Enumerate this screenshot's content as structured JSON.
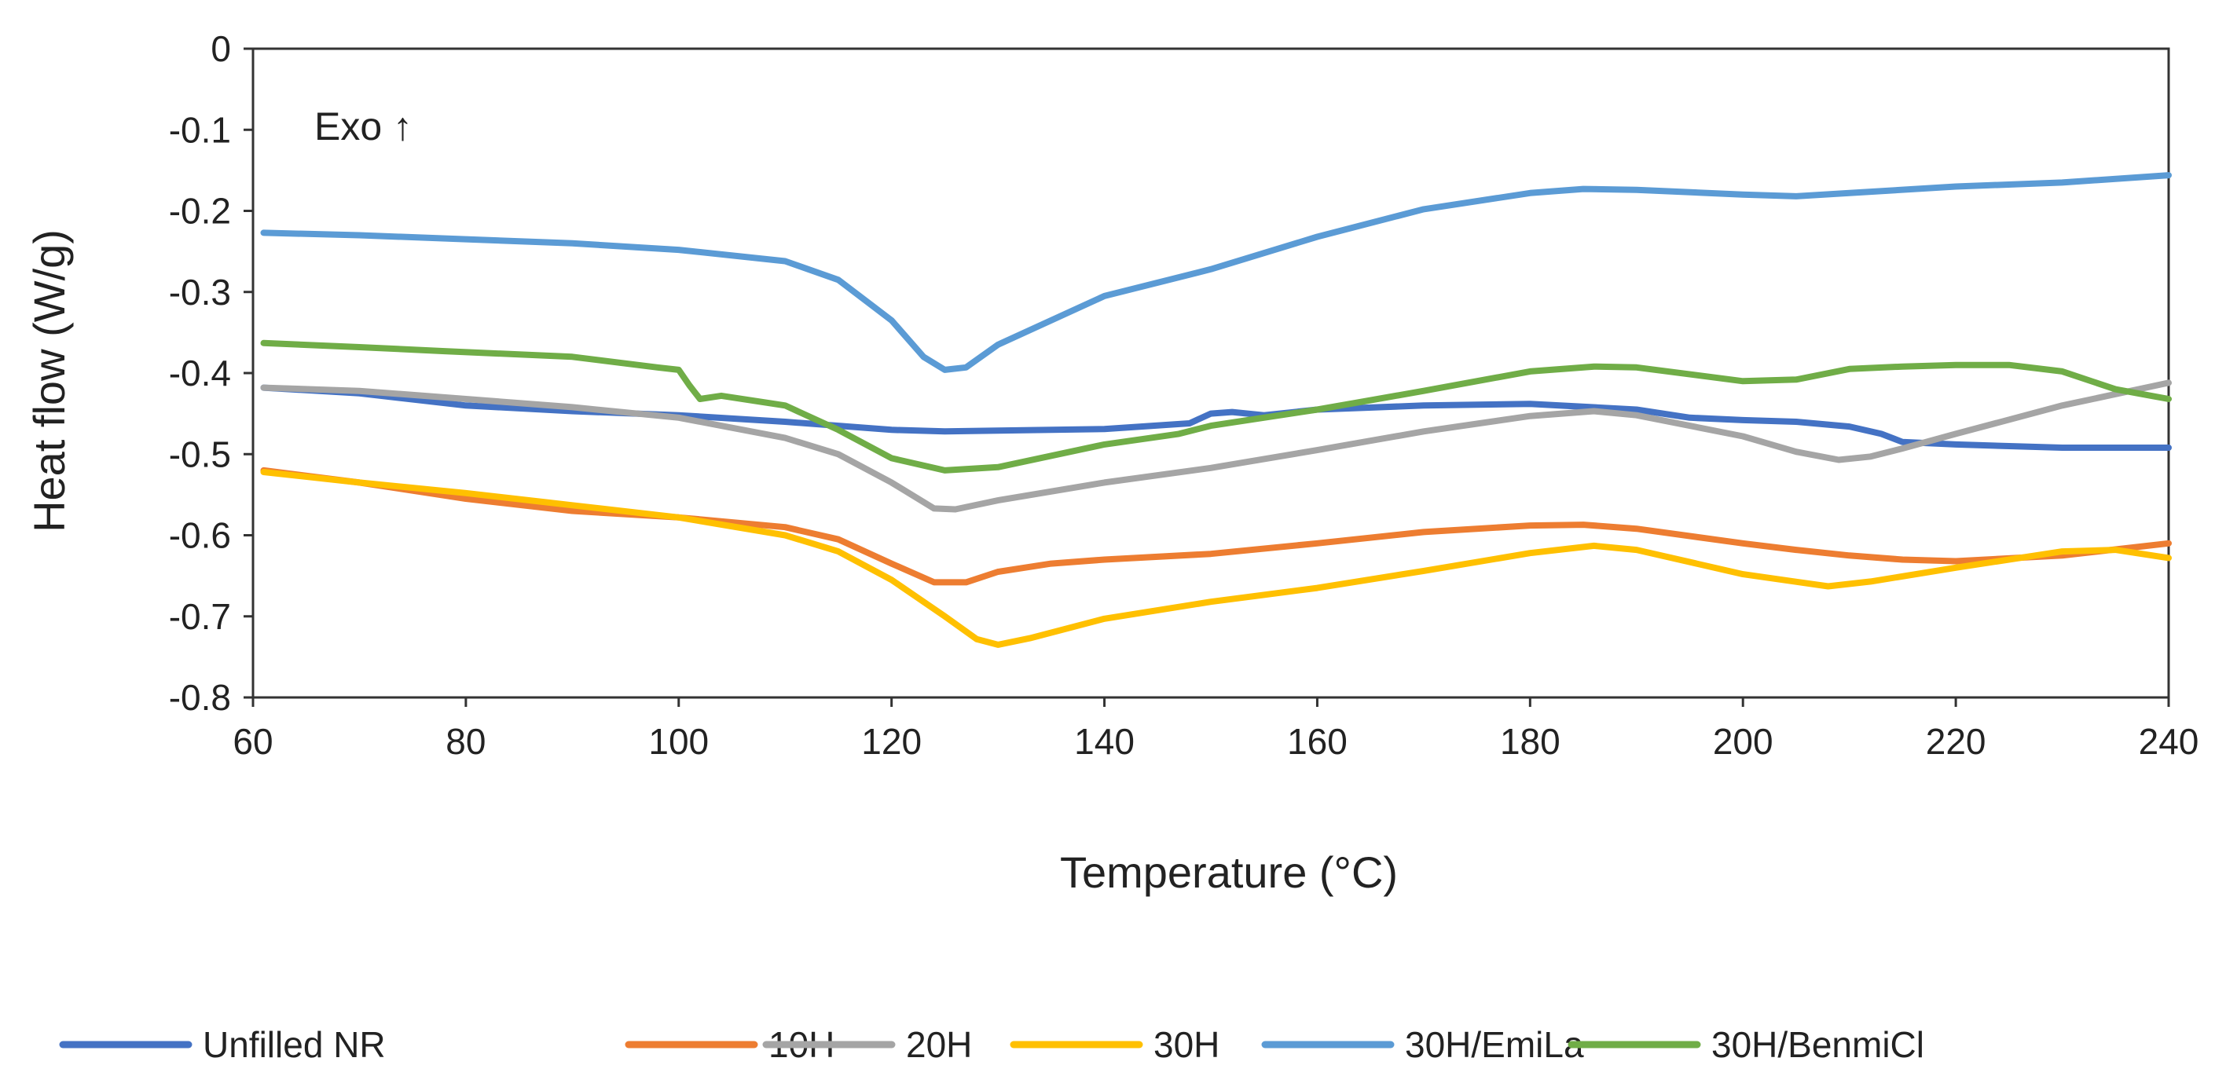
{
  "chart_data": {
    "type": "line",
    "xlabel": "Temperature (°C)",
    "ylabel": "Heat flow (W/g)",
    "xlim": [
      60,
      240
    ],
    "ylim": [
      -0.8,
      0
    ],
    "xticks": [
      60,
      80,
      100,
      120,
      140,
      160,
      180,
      200,
      220,
      240
    ],
    "yticks": [
      0,
      -0.1,
      -0.2,
      -0.3,
      -0.4,
      -0.5,
      -0.6,
      -0.7,
      -0.8
    ],
    "ytick_labels": [
      "0",
      "-0.1",
      "-0.2",
      "-0.3",
      "-0.4",
      "-0.5",
      "-0.6",
      "-0.7",
      "-0.8"
    ],
    "grid": false,
    "legend_position": "bottom",
    "annotation": "Exo ↑",
    "series": [
      {
        "name": "Unfilled NR",
        "color": "#4472C4",
        "points": [
          [
            61,
            -0.418
          ],
          [
            70,
            -0.425
          ],
          [
            80,
            -0.44
          ],
          [
            90,
            -0.447
          ],
          [
            100,
            -0.452
          ],
          [
            110,
            -0.46
          ],
          [
            120,
            -0.47
          ],
          [
            125,
            -0.472
          ],
          [
            130,
            -0.471
          ],
          [
            140,
            -0.469
          ],
          [
            148,
            -0.462
          ],
          [
            150,
            -0.45
          ],
          [
            152,
            -0.448
          ],
          [
            155,
            -0.452
          ],
          [
            160,
            -0.445
          ],
          [
            170,
            -0.44
          ],
          [
            180,
            -0.438
          ],
          [
            190,
            -0.445
          ],
          [
            195,
            -0.455
          ],
          [
            200,
            -0.458
          ],
          [
            205,
            -0.46
          ],
          [
            210,
            -0.466
          ],
          [
            213,
            -0.475
          ],
          [
            215,
            -0.485
          ],
          [
            220,
            -0.488
          ],
          [
            230,
            -0.492
          ],
          [
            240,
            -0.492
          ]
        ]
      },
      {
        "name": "10H",
        "color": "#ED7D31",
        "points": [
          [
            61,
            -0.52
          ],
          [
            70,
            -0.535
          ],
          [
            80,
            -0.555
          ],
          [
            90,
            -0.57
          ],
          [
            100,
            -0.578
          ],
          [
            110,
            -0.59
          ],
          [
            115,
            -0.605
          ],
          [
            120,
            -0.635
          ],
          [
            124,
            -0.658
          ],
          [
            127,
            -0.658
          ],
          [
            130,
            -0.645
          ],
          [
            135,
            -0.635
          ],
          [
            140,
            -0.63
          ],
          [
            150,
            -0.623
          ],
          [
            160,
            -0.61
          ],
          [
            170,
            -0.596
          ],
          [
            180,
            -0.588
          ],
          [
            185,
            -0.587
          ],
          [
            190,
            -0.592
          ],
          [
            200,
            -0.61
          ],
          [
            205,
            -0.618
          ],
          [
            210,
            -0.625
          ],
          [
            215,
            -0.63
          ],
          [
            220,
            -0.632
          ],
          [
            230,
            -0.625
          ],
          [
            240,
            -0.61
          ]
        ]
      },
      {
        "name": "20H",
        "color": "#A5A5A5",
        "points": [
          [
            61,
            -0.418
          ],
          [
            70,
            -0.422
          ],
          [
            80,
            -0.432
          ],
          [
            90,
            -0.442
          ],
          [
            100,
            -0.455
          ],
          [
            110,
            -0.48
          ],
          [
            115,
            -0.5
          ],
          [
            120,
            -0.535
          ],
          [
            124,
            -0.567
          ],
          [
            126,
            -0.568
          ],
          [
            130,
            -0.557
          ],
          [
            140,
            -0.535
          ],
          [
            150,
            -0.517
          ],
          [
            160,
            -0.495
          ],
          [
            170,
            -0.472
          ],
          [
            180,
            -0.453
          ],
          [
            186,
            -0.447
          ],
          [
            190,
            -0.452
          ],
          [
            200,
            -0.478
          ],
          [
            205,
            -0.497
          ],
          [
            209,
            -0.507
          ],
          [
            212,
            -0.503
          ],
          [
            215,
            -0.493
          ],
          [
            220,
            -0.475
          ],
          [
            230,
            -0.44
          ],
          [
            240,
            -0.412
          ]
        ]
      },
      {
        "name": "30H",
        "color": "#FFC000",
        "points": [
          [
            61,
            -0.522
          ],
          [
            70,
            -0.535
          ],
          [
            80,
            -0.548
          ],
          [
            90,
            -0.563
          ],
          [
            100,
            -0.578
          ],
          [
            110,
            -0.6
          ],
          [
            115,
            -0.62
          ],
          [
            120,
            -0.655
          ],
          [
            125,
            -0.7
          ],
          [
            128,
            -0.728
          ],
          [
            130,
            -0.735
          ],
          [
            133,
            -0.727
          ],
          [
            140,
            -0.703
          ],
          [
            150,
            -0.682
          ],
          [
            160,
            -0.665
          ],
          [
            170,
            -0.644
          ],
          [
            180,
            -0.622
          ],
          [
            186,
            -0.613
          ],
          [
            190,
            -0.618
          ],
          [
            200,
            -0.648
          ],
          [
            208,
            -0.663
          ],
          [
            212,
            -0.657
          ],
          [
            220,
            -0.64
          ],
          [
            230,
            -0.62
          ],
          [
            235,
            -0.618
          ],
          [
            240,
            -0.628
          ]
        ]
      },
      {
        "name": "30H/EmiLa",
        "color": "#5B9BD5",
        "points": [
          [
            61,
            -0.227
          ],
          [
            70,
            -0.23
          ],
          [
            80,
            -0.235
          ],
          [
            90,
            -0.24
          ],
          [
            100,
            -0.248
          ],
          [
            110,
            -0.262
          ],
          [
            115,
            -0.285
          ],
          [
            120,
            -0.335
          ],
          [
            123,
            -0.38
          ],
          [
            125,
            -0.396
          ],
          [
            127,
            -0.393
          ],
          [
            130,
            -0.365
          ],
          [
            140,
            -0.305
          ],
          [
            150,
            -0.272
          ],
          [
            160,
            -0.232
          ],
          [
            170,
            -0.198
          ],
          [
            180,
            -0.178
          ],
          [
            185,
            -0.173
          ],
          [
            190,
            -0.174
          ],
          [
            200,
            -0.18
          ],
          [
            205,
            -0.182
          ],
          [
            210,
            -0.178
          ],
          [
            220,
            -0.17
          ],
          [
            230,
            -0.165
          ],
          [
            240,
            -0.156
          ]
        ]
      },
      {
        "name": "30H/BenmiCl",
        "color": "#70AD47",
        "points": [
          [
            61,
            -0.363
          ],
          [
            70,
            -0.368
          ],
          [
            78,
            -0.373
          ],
          [
            90,
            -0.38
          ],
          [
            98,
            -0.393
          ],
          [
            100,
            -0.396
          ],
          [
            101,
            -0.415
          ],
          [
            102,
            -0.432
          ],
          [
            104,
            -0.428
          ],
          [
            110,
            -0.44
          ],
          [
            115,
            -0.47
          ],
          [
            120,
            -0.505
          ],
          [
            125,
            -0.52
          ],
          [
            130,
            -0.516
          ],
          [
            140,
            -0.488
          ],
          [
            147,
            -0.475
          ],
          [
            150,
            -0.465
          ],
          [
            160,
            -0.445
          ],
          [
            170,
            -0.422
          ],
          [
            180,
            -0.398
          ],
          [
            186,
            -0.392
          ],
          [
            190,
            -0.393
          ],
          [
            200,
            -0.41
          ],
          [
            205,
            -0.408
          ],
          [
            210,
            -0.395
          ],
          [
            215,
            -0.392
          ],
          [
            220,
            -0.39
          ],
          [
            225,
            -0.39
          ],
          [
            230,
            -0.398
          ],
          [
            235,
            -0.42
          ],
          [
            240,
            -0.432
          ]
        ]
      }
    ]
  }
}
